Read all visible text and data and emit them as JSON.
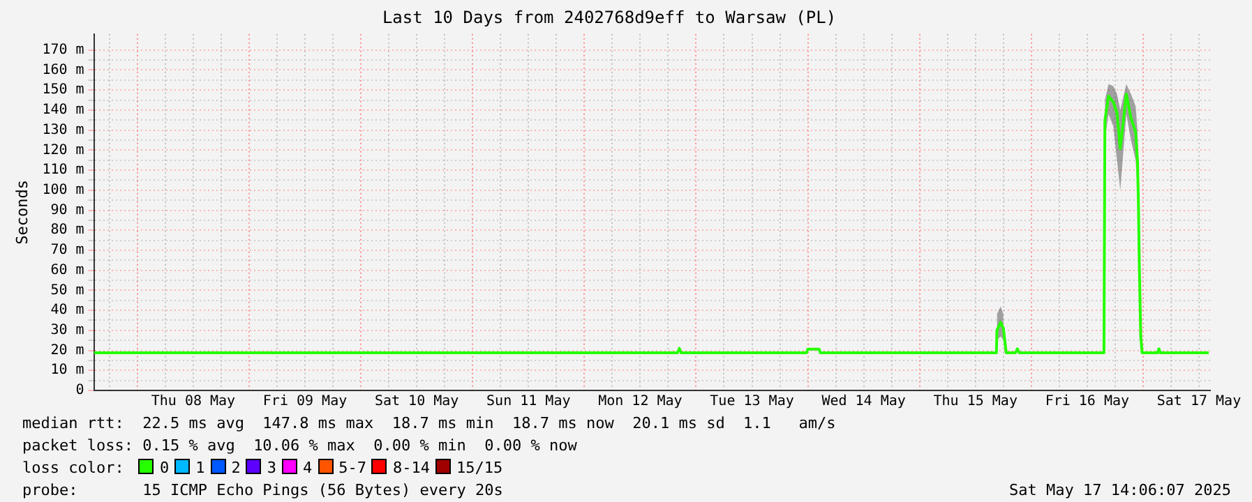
{
  "chart_data": {
    "type": "line",
    "title": "Last 10 Days from 2402768d9eff to Warsaw (PL)",
    "ylabel": "Seconds",
    "xlim": [
      "2025-05-07T14:40",
      "2025-05-17T14:24"
    ],
    "xticks": [
      {
        "value": "2025-05-07T18:00",
        "label": null
      },
      {
        "value": "2025-05-08T00:00",
        "label": null
      },
      {
        "value": "2025-05-08T06:00",
        "label": null
      },
      {
        "value": "2025-05-08T12:00",
        "label": "Thu 08 May"
      },
      {
        "value": "2025-05-08T18:00",
        "label": null
      },
      {
        "value": "2025-05-09T00:00",
        "label": null
      },
      {
        "value": "2025-05-09T06:00",
        "label": null
      },
      {
        "value": "2025-05-09T12:00",
        "label": "Fri 09 May"
      },
      {
        "value": "2025-05-09T18:00",
        "label": null
      },
      {
        "value": "2025-05-10T00:00",
        "label": null
      },
      {
        "value": "2025-05-10T06:00",
        "label": null
      },
      {
        "value": "2025-05-10T12:00",
        "label": "Sat 10 May"
      },
      {
        "value": "2025-05-10T18:00",
        "label": null
      },
      {
        "value": "2025-05-11T00:00",
        "label": null
      },
      {
        "value": "2025-05-11T06:00",
        "label": null
      },
      {
        "value": "2025-05-11T12:00",
        "label": "Sun 11 May"
      },
      {
        "value": "2025-05-11T18:00",
        "label": null
      },
      {
        "value": "2025-05-12T00:00",
        "label": null
      },
      {
        "value": "2025-05-12T06:00",
        "label": null
      },
      {
        "value": "2025-05-12T12:00",
        "label": "Mon 12 May"
      },
      {
        "value": "2025-05-12T18:00",
        "label": null
      },
      {
        "value": "2025-05-13T00:00",
        "label": null
      },
      {
        "value": "2025-05-13T06:00",
        "label": null
      },
      {
        "value": "2025-05-13T12:00",
        "label": "Tue 13 May"
      },
      {
        "value": "2025-05-13T18:00",
        "label": null
      },
      {
        "value": "2025-05-14T00:00",
        "label": null
      },
      {
        "value": "2025-05-14T06:00",
        "label": null
      },
      {
        "value": "2025-05-14T12:00",
        "label": "Wed 14 May"
      },
      {
        "value": "2025-05-14T18:00",
        "label": null
      },
      {
        "value": "2025-05-15T00:00",
        "label": null
      },
      {
        "value": "2025-05-15T06:00",
        "label": null
      },
      {
        "value": "2025-05-15T12:00",
        "label": "Thu 15 May"
      },
      {
        "value": "2025-05-15T18:00",
        "label": null
      },
      {
        "value": "2025-05-16T00:00",
        "label": null
      },
      {
        "value": "2025-05-16T06:00",
        "label": null
      },
      {
        "value": "2025-05-16T12:00",
        "label": "Fri 16 May"
      },
      {
        "value": "2025-05-16T18:00",
        "label": null
      },
      {
        "value": "2025-05-17T00:00",
        "label": null
      },
      {
        "value": "2025-05-17T06:00",
        "label": null
      },
      {
        "value": "2025-05-17T12:00",
        "label": "Sat 17 May"
      }
    ],
    "ylim": [
      0,
      178
    ],
    "yticks": [
      {
        "value": 0,
        "label": "0"
      },
      {
        "value": 5,
        "label": null
      },
      {
        "value": 10,
        "label": "10 m"
      },
      {
        "value": 15,
        "label": null
      },
      {
        "value": 20,
        "label": "20 m"
      },
      {
        "value": 25,
        "label": null
      },
      {
        "value": 30,
        "label": "30 m"
      },
      {
        "value": 35,
        "label": null
      },
      {
        "value": 40,
        "label": "40 m"
      },
      {
        "value": 45,
        "label": null
      },
      {
        "value": 50,
        "label": "50 m"
      },
      {
        "value": 55,
        "label": null
      },
      {
        "value": 60,
        "label": "60 m"
      },
      {
        "value": 65,
        "label": null
      },
      {
        "value": 70,
        "label": "70 m"
      },
      {
        "value": 75,
        "label": null
      },
      {
        "value": 80,
        "label": "80 m"
      },
      {
        "value": 85,
        "label": null
      },
      {
        "value": 90,
        "label": "90 m"
      },
      {
        "value": 95,
        "label": null
      },
      {
        "value": 100,
        "label": "100 m"
      },
      {
        "value": 105,
        "label": null
      },
      {
        "value": 110,
        "label": "110 m"
      },
      {
        "value": 115,
        "label": null
      },
      {
        "value": 120,
        "label": "120 m"
      },
      {
        "value": 125,
        "label": null
      },
      {
        "value": 130,
        "label": "130 m"
      },
      {
        "value": 135,
        "label": null
      },
      {
        "value": 140,
        "label": "140 m"
      },
      {
        "value": 145,
        "label": null
      },
      {
        "value": 150,
        "label": "150 m"
      },
      {
        "value": 155,
        "label": null
      },
      {
        "value": 160,
        "label": "160 m"
      },
      {
        "value": 165,
        "label": null
      },
      {
        "value": 170,
        "label": "170 m"
      }
    ],
    "grid": true,
    "legend": false,
    "series": [
      {
        "x": [
          "2025-05-07T14:40",
          "2025-05-12T20:00",
          "2025-05-12T20:24",
          "2025-05-12T20:48",
          "2025-05-13T23:42",
          "2025-05-14T00:00",
          "2025-05-14T02:24",
          "2025-05-14T02:42",
          "2025-05-15T16:30",
          "2025-05-15T16:36",
          "2025-05-15T17:24",
          "2025-05-15T18:00",
          "2025-05-15T18:36",
          "2025-05-15T20:36",
          "2025-05-15T21:00",
          "2025-05-15T21:24",
          "2025-05-16T15:36",
          "2025-05-16T15:48",
          "2025-05-16T16:35",
          "2025-05-16T17:36",
          "2025-05-16T18:24",
          "2025-05-16T19:06",
          "2025-05-16T20:24",
          "2025-05-16T21:24",
          "2025-05-16T22:24",
          "2025-05-16T22:48",
          "2025-05-16T23:00",
          "2025-05-16T23:12",
          "2025-05-16T23:30",
          "2025-05-16T23:48",
          "2025-05-17T03:06",
          "2025-05-17T03:24",
          "2025-05-17T03:42",
          "2025-05-17T14:06"
        ],
        "values": [
          18.8,
          18.8,
          21,
          18.8,
          18.8,
          20.6,
          20.6,
          18.8,
          18.8,
          30,
          34,
          31,
          18.8,
          18.8,
          20.8,
          18.8,
          18.8,
          135,
          147,
          144,
          138.5,
          120.7,
          148,
          136,
          129,
          114.7,
          93.4,
          61.4,
          27,
          18.8,
          18.8,
          20.8,
          18.8,
          18.8
        ],
        "color": "#26ff00",
        "lower": [
          null,
          null,
          null,
          null,
          null,
          null,
          null,
          null,
          null,
          25,
          27,
          25,
          null,
          null,
          null,
          null,
          null,
          125,
          138,
          132,
          115,
          100,
          138,
          125,
          115,
          100,
          80,
          50,
          22,
          null,
          null,
          null,
          null,
          null
        ],
        "upper": [
          null,
          null,
          null,
          null,
          null,
          null,
          null,
          null,
          null,
          38,
          42,
          38,
          null,
          null,
          null,
          null,
          null,
          145,
          153,
          152,
          148,
          140,
          153,
          148,
          142,
          130,
          110,
          75,
          35,
          null,
          null,
          null,
          null,
          null
        ]
      }
    ],
    "annotations": [
      "median rtt:  22.5 ms avg  147.8 ms max  18.7 ms min  18.7 ms now  20.1 ms sd  1.1   am/s",
      "packet loss: 0.15 % avg  10.06 % max  0.00 % min  0.00 % now",
      "loss color:  0  1  2  3  4  5-7  8-14  15/15",
      "probe:       15 ICMP Echo Pings (56 Bytes) every 20s",
      "Sat May 17 14:06:07 2025"
    ]
  }
}
